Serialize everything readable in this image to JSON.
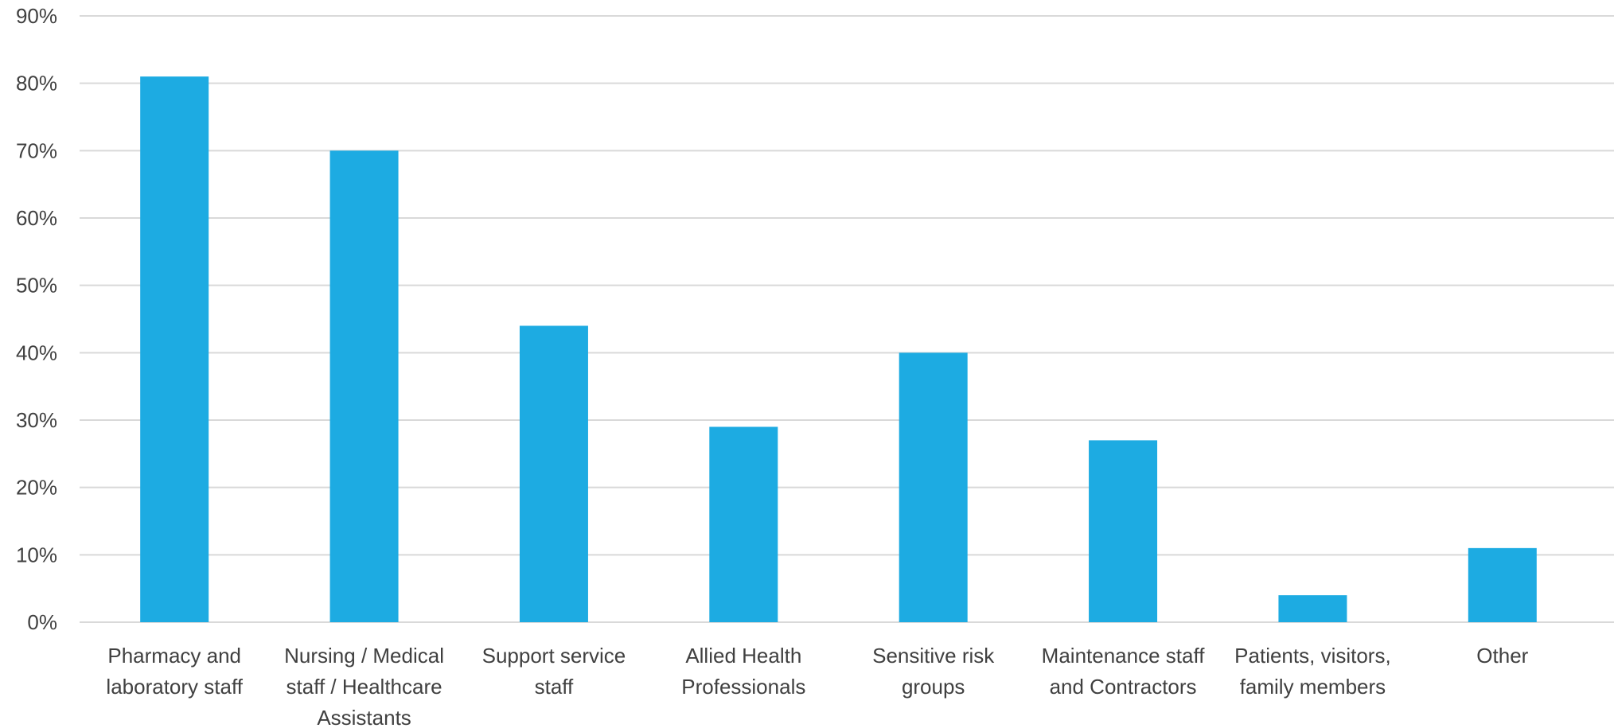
{
  "chart_data": {
    "type": "bar",
    "categories": [
      [
        "Pharmacy and",
        "laboratory staff"
      ],
      [
        "Nursing / Medical",
        "staff / Healthcare",
        "Assistants"
      ],
      [
        "Support service",
        "staff"
      ],
      [
        "Allied Health",
        "Professionals"
      ],
      [
        "Sensitive risk",
        "groups"
      ],
      [
        "Maintenance staff",
        "and Contractors"
      ],
      [
        "Patients, visitors,",
        "family members"
      ],
      [
        "Other"
      ]
    ],
    "values": [
      81,
      70,
      44,
      29,
      40,
      27,
      4,
      11
    ],
    "unit": "%",
    "ylim": [
      0,
      90
    ],
    "yticks": [
      0,
      10,
      20,
      30,
      40,
      50,
      60,
      70,
      80,
      90
    ],
    "ytick_labels": [
      "0%",
      "10%",
      "20%",
      "30%",
      "40%",
      "50%",
      "60%",
      "70%",
      "80%",
      "90%"
    ],
    "title": "",
    "xlabel": "",
    "ylabel": "",
    "grid": true,
    "legend": "none",
    "colors": {
      "bar": "#1DABE2",
      "grid": "#D9D9D9",
      "text": "#404040"
    }
  }
}
